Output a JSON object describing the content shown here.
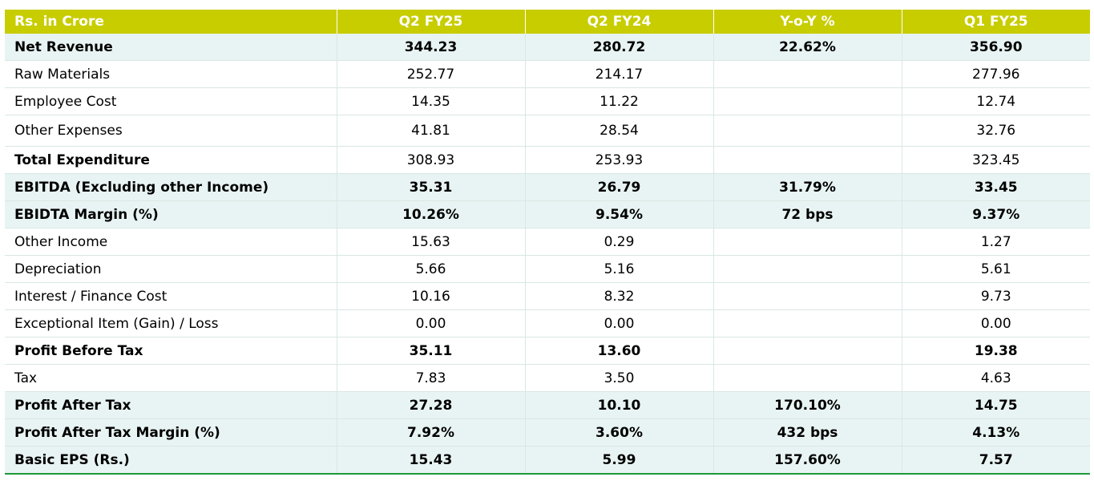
{
  "header": {
    "label": "Rs. in Crore",
    "columns": [
      "Q2 FY25",
      "Q2 FY24",
      "Y-o-Y %",
      "Q1 FY25"
    ]
  },
  "rows": [
    {
      "label": "Net Revenue",
      "values": [
        "344.23",
        "280.72",
        "22.62%",
        "356.90"
      ]
    },
    {
      "label": "Raw Materials",
      "values": [
        "252.77",
        "214.17",
        "",
        "277.96"
      ]
    },
    {
      "label": "Employee Cost",
      "values": [
        "14.35",
        "11.22",
        "",
        "12.74"
      ]
    },
    {
      "label": "Other Expenses",
      "values": [
        "41.81",
        "28.54",
        "",
        "32.76"
      ]
    },
    {
      "label": "Total Expenditure",
      "values": [
        "308.93",
        "253.93",
        "",
        "323.45"
      ]
    },
    {
      "label": "EBITDA (Excluding other Income)",
      "values": [
        "35.31",
        "26.79",
        "31.79%",
        "33.45"
      ]
    },
    {
      "label": "EBIDTA Margin (%)",
      "values": [
        "10.26%",
        "9.54%",
        "72 bps",
        "9.37%"
      ]
    },
    {
      "label": "Other Income",
      "values": [
        "15.63",
        "0.29",
        "",
        "1.27"
      ]
    },
    {
      "label": "Depreciation",
      "values": [
        "5.66",
        "5.16",
        "",
        "5.61"
      ]
    },
    {
      "label": "Interest / Finance Cost",
      "values": [
        "10.16",
        "8.32",
        "",
        "9.73"
      ]
    },
    {
      "label": "Exceptional Item (Gain) / Loss",
      "values": [
        "0.00",
        "0.00",
        "",
        "0.00"
      ]
    },
    {
      "label": "Profit Before Tax",
      "values": [
        "35.11",
        "13.60",
        "",
        "19.38"
      ]
    },
    {
      "label": "Tax",
      "values": [
        "7.83",
        "3.50",
        "",
        "4.63"
      ]
    },
    {
      "label": "Profit After Tax",
      "values": [
        "27.28",
        "10.10",
        "170.10%",
        "14.75"
      ]
    },
    {
      "label": "Profit After Tax Margin (%)",
      "values": [
        "7.92%",
        "3.60%",
        "432 bps",
        "4.13%"
      ]
    },
    {
      "label": "Basic EPS (Rs.)",
      "values": [
        "15.43",
        "5.99",
        "157.60%",
        "7.57"
      ]
    }
  ],
  "colors": {
    "header_bg": "#c8cd00",
    "highlight_row_bg": "#e8f4f3",
    "bottom_rule": "#1e9a3a"
  }
}
